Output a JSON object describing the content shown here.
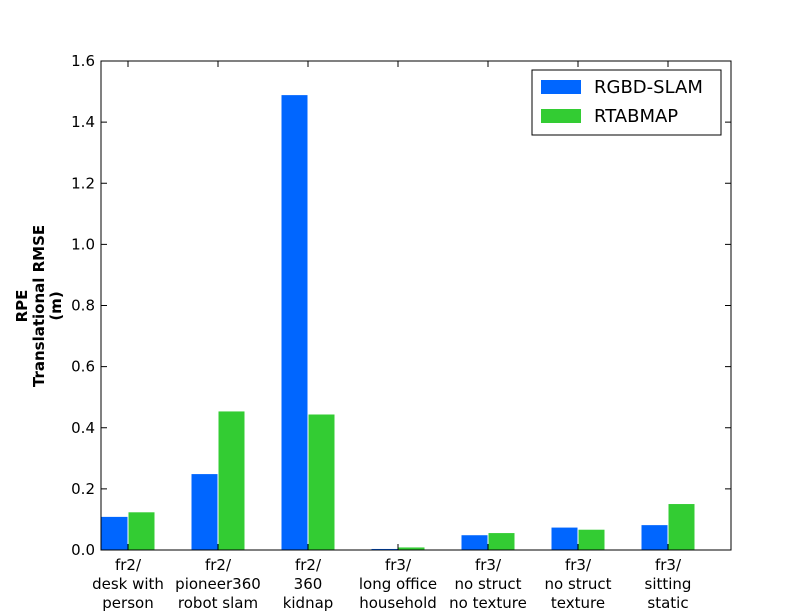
{
  "chart_data": {
    "type": "bar",
    "title": "",
    "xlabel": "",
    "ylabel_lines": [
      "RPE",
      "Translational RMSE",
      "(m)"
    ],
    "categories": [
      [
        "fr2/",
        "desk with",
        "person"
      ],
      [
        "fr2/",
        "pioneer360",
        "robot slam"
      ],
      [
        "fr2/",
        "360",
        "kidnap"
      ],
      [
        "fr3/",
        "long office",
        "household"
      ],
      [
        "fr3/",
        "no struct",
        "no texture"
      ],
      [
        "fr3/",
        "no struct",
        "texture"
      ],
      [
        "fr3/",
        "sitting",
        "static"
      ]
    ],
    "series": [
      {
        "name": "RGBD-SLAM",
        "color": "#0066ff",
        "values": [
          0.11,
          0.25,
          1.49,
          0.005,
          0.05,
          0.075,
          0.083
        ]
      },
      {
        "name": "RTABMAP",
        "color": "#33cc33",
        "values": [
          0.125,
          0.455,
          0.445,
          0.01,
          0.057,
          0.068,
          0.152
        ]
      }
    ],
    "ylim": [
      0,
      1.6
    ],
    "yticks": [
      "0.0",
      "0.2",
      "0.4",
      "0.6",
      "0.8",
      "1.0",
      "1.2",
      "1.4",
      "1.6"
    ],
    "grid": false,
    "legend_position": "top-right"
  }
}
